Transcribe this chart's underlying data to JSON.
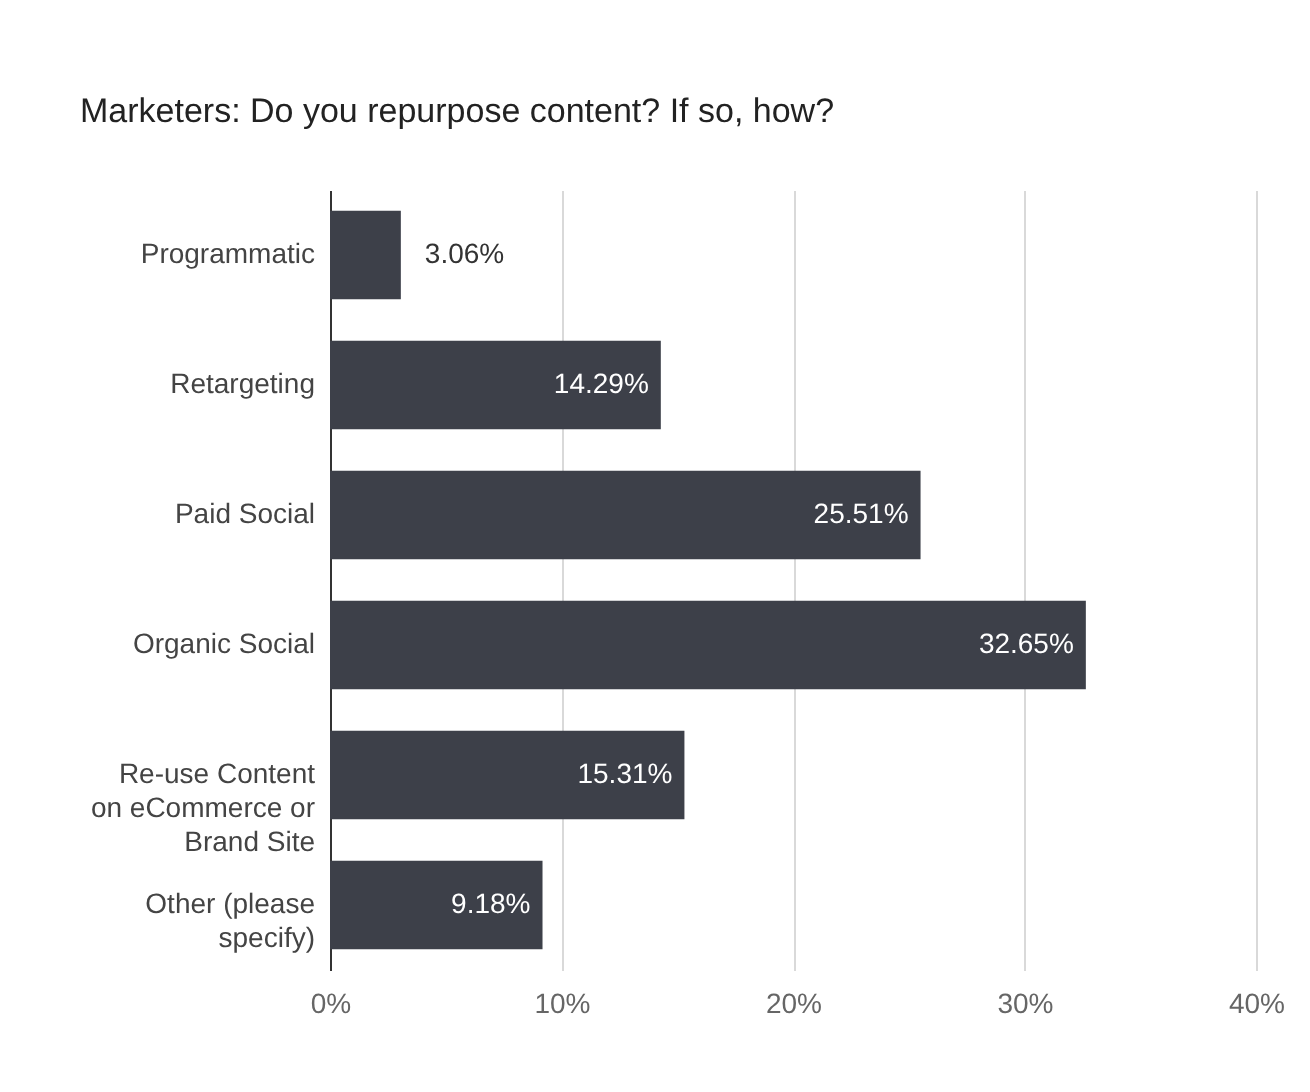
{
  "chart_data": {
    "type": "bar",
    "orientation": "horizontal",
    "title": "Marketers: Do you repurpose content? If so, how?",
    "categories": [
      "Programmatic",
      "Retargeting",
      "Paid Social",
      "Organic Social",
      "Re-use Content on eCommerce or Brand Site",
      "Other (please specify)"
    ],
    "values": [
      3.06,
      14.29,
      25.51,
      32.65,
      15.31,
      9.18
    ],
    "value_labels": [
      "3.06%",
      "14.29%",
      "25.51%",
      "32.65%",
      "15.31%",
      "9.18%"
    ],
    "color": "#3d4049",
    "xlim": [
      0,
      40
    ],
    "xticks": [
      {
        "value": 0,
        "label": "0%"
      },
      {
        "value": 10,
        "label": "10%"
      },
      {
        "value": 20,
        "label": "20%"
      },
      {
        "value": 30,
        "label": "30%"
      },
      {
        "value": 40,
        "label": "40%"
      }
    ],
    "grid": "x"
  }
}
